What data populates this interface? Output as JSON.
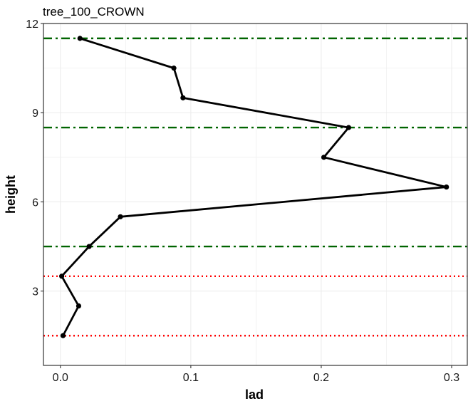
{
  "chart_data": {
    "type": "line",
    "title": "tree_100_CROWN",
    "xlabel": "lad",
    "ylabel": "height",
    "xlim": [
      -0.013,
      0.312
    ],
    "ylim": [
      0.5,
      12.0
    ],
    "xticks": [
      0.0,
      0.1,
      0.2,
      0.3
    ],
    "xtick_labels": [
      "0.0",
      "0.1",
      "0.2",
      "0.3"
    ],
    "yticks": [
      3,
      6,
      9,
      12
    ],
    "ytick_labels": [
      "3",
      "6",
      "9",
      "12"
    ],
    "grid": true,
    "legend": "none",
    "series": [
      {
        "color": "#000000",
        "points": [
          {
            "x": 0.002,
            "y": 1.5
          },
          {
            "x": 0.014,
            "y": 2.5
          },
          {
            "x": 0.001,
            "y": 3.5
          },
          {
            "x": 0.022,
            "y": 4.5
          },
          {
            "x": 0.046,
            "y": 5.5
          },
          {
            "x": 0.296,
            "y": 6.5
          },
          {
            "x": 0.202,
            "y": 7.5
          },
          {
            "x": 0.221,
            "y": 8.5
          },
          {
            "x": 0.094,
            "y": 9.5
          },
          {
            "x": 0.087,
            "y": 10.5
          },
          {
            "x": 0.015,
            "y": 11.5
          }
        ]
      }
    ],
    "reference_lines": [
      {
        "y": 1.5,
        "color": "#ff0000",
        "style": "dotted"
      },
      {
        "y": 3.5,
        "color": "#ff0000",
        "style": "dotted"
      },
      {
        "y": 4.5,
        "color": "#006400",
        "style": "dashdot"
      },
      {
        "y": 8.5,
        "color": "#006400",
        "style": "dashdot"
      },
      {
        "y": 11.5,
        "color": "#006400",
        "style": "dashdot"
      }
    ]
  }
}
